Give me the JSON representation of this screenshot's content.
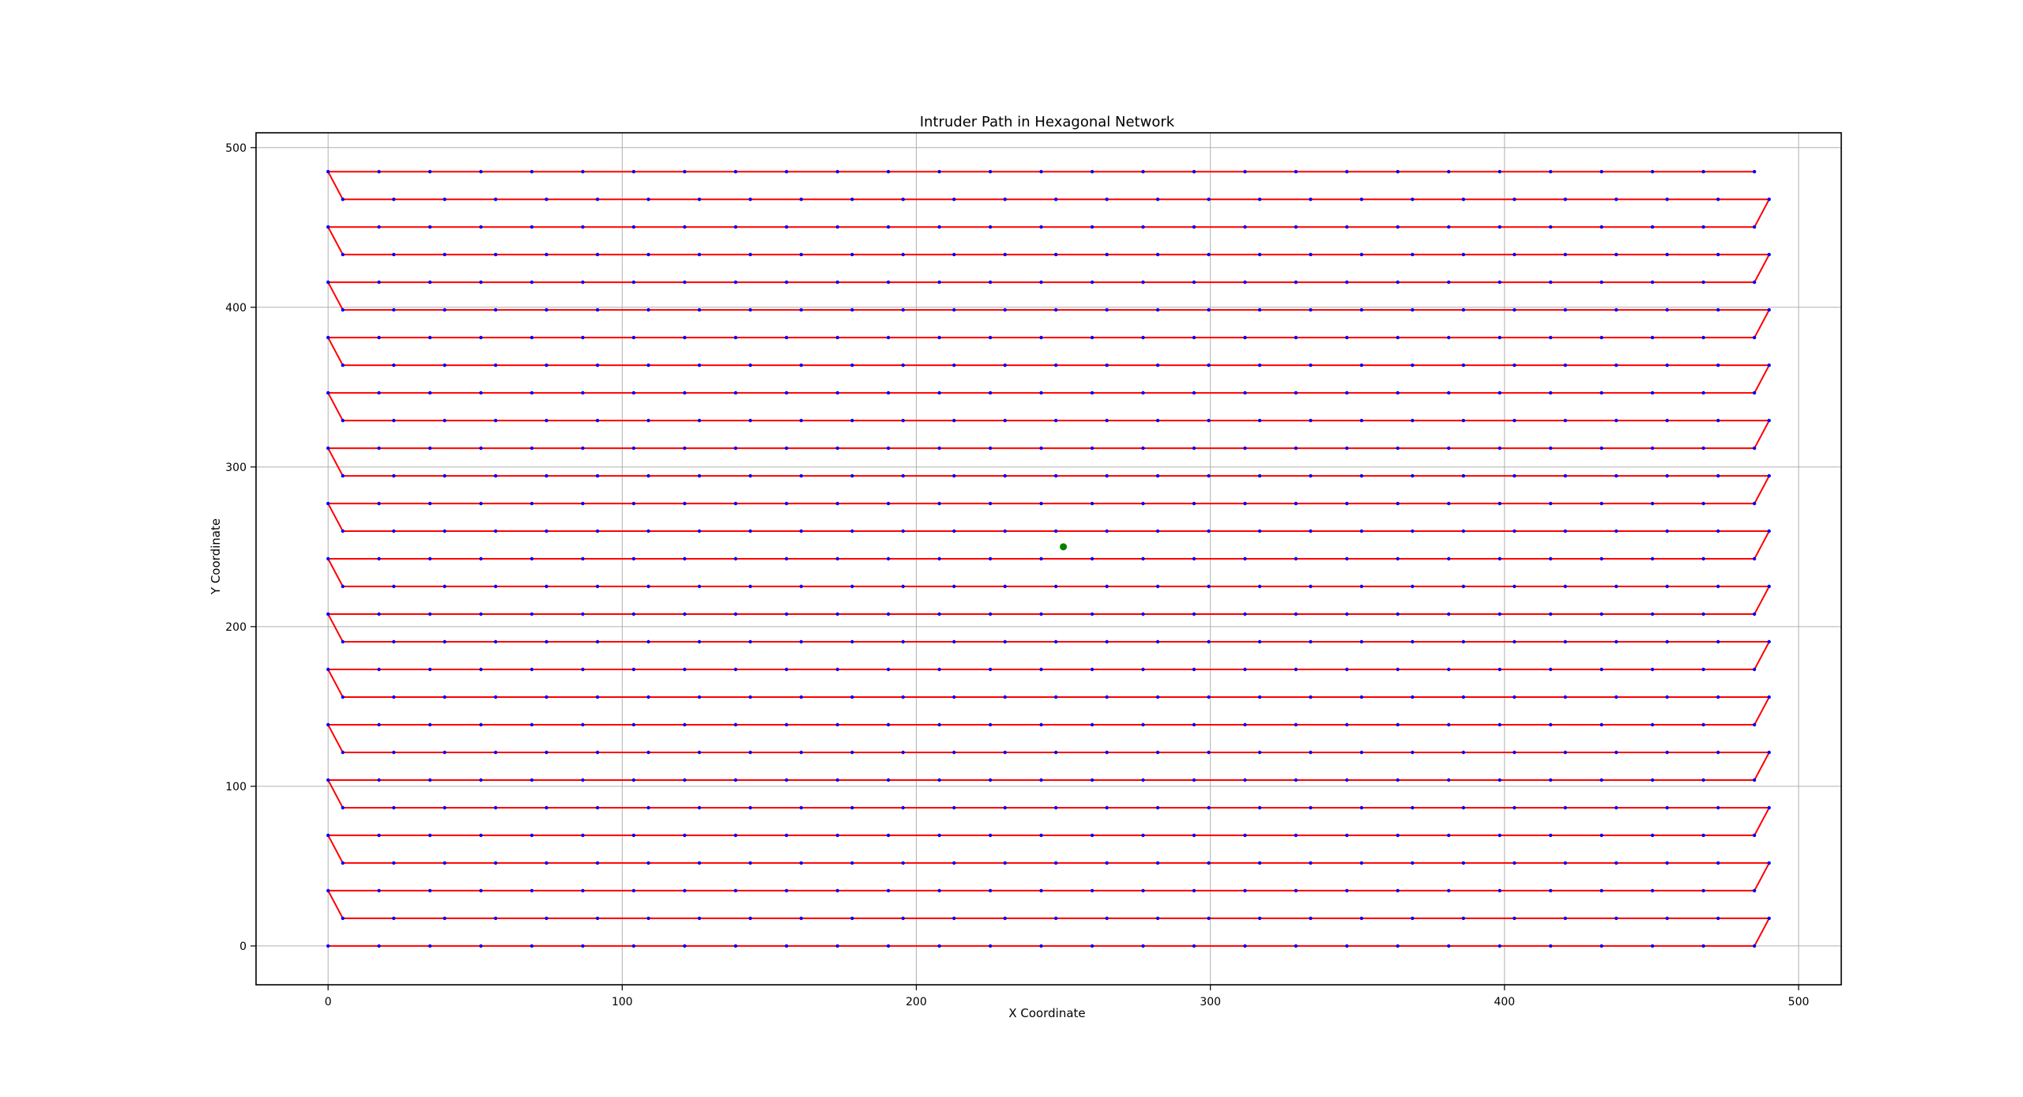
{
  "chart_data": {
    "type": "scatter",
    "title": "Intruder Path in Hexagonal Network",
    "xlabel": "X Coordinate",
    "ylabel": "Y Coordinate",
    "xlim": [
      -24.5,
      514.5
    ],
    "ylim": [
      -24.3,
      509.3
    ],
    "xticks": [
      0,
      100,
      200,
      300,
      400,
      500
    ],
    "yticks": [
      0,
      100,
      200,
      300,
      400,
      500
    ],
    "grid": true,
    "legend": "none",
    "network_nodes": {
      "color": "#0000ff",
      "marker": "dot",
      "rows": 29,
      "row_spacing": 17.32,
      "columns_per_row": 29,
      "even_row_x_start": 0,
      "odd_row_x_start": 5,
      "x_step_even": 17.32,
      "x_step_odd": 17.32
    },
    "intruder_path": {
      "color": "#ff0000",
      "pattern": "serpentine rows",
      "start": [
        0,
        0
      ],
      "left_x": [
        0,
        5
      ],
      "right_x": [
        485,
        490
      ],
      "row_y_step": 17.32,
      "rows": 29
    },
    "target": {
      "color": "#008000",
      "x": 250,
      "y": 250
    }
  }
}
